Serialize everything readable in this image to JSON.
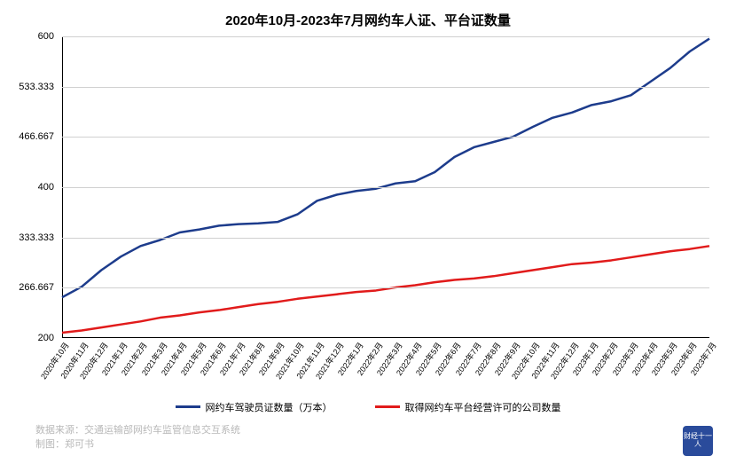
{
  "chart": {
    "type": "line",
    "title": "2020年10月-2023年7月网约车人证、平台证数量",
    "title_fontsize": 15,
    "title_fontweight": "bold",
    "background_color": "#ffffff",
    "grid_color": "#d0d0d0",
    "axis_color": "#000000",
    "ylim": [
      200,
      600
    ],
    "yticks": [
      200,
      266.667,
      333.333,
      400,
      466.667,
      533.333,
      600
    ],
    "ytick_labels": [
      "200",
      "266.667",
      "333.333",
      "400",
      "466.667",
      "533.333",
      "600"
    ],
    "ytick_fontsize": 11,
    "xtick_fontsize": 9,
    "xtick_rotation": -55,
    "categories": [
      "2020年10月",
      "2020年11月",
      "2020年12月",
      "2021年1月",
      "2021年2月",
      "2021年3月",
      "2021年4月",
      "2021年5月",
      "2021年6月",
      "2021年7月",
      "2021年8月",
      "2021年9月",
      "2021年10月",
      "2021年11月",
      "2021年12月",
      "2022年1月",
      "2022年2月",
      "2022年3月",
      "2022年4月",
      "2022年5月",
      "2022年6月",
      "2022年7月",
      "2022年8月",
      "2022年9月",
      "2022年10月",
      "2022年11月",
      "2022年12月",
      "2023年1月",
      "2023年2月",
      "2023年3月",
      "2023年4月",
      "2023年5月",
      "2023年6月",
      "2023年7月"
    ],
    "series": [
      {
        "name": "网约车驾驶员证数量（万本）",
        "color": "#1d3c8c",
        "line_width": 2.5,
        "values": [
          254,
          268,
          290,
          308,
          322,
          330,
          340,
          344,
          349,
          351,
          352,
          354,
          364,
          382,
          390,
          395,
          398,
          405,
          408,
          420,
          440,
          453,
          460,
          467,
          480,
          492,
          499,
          509,
          514,
          522,
          540,
          558,
          580,
          597
        ]
      },
      {
        "name": "取得网约车平台经营许可的公司数量",
        "color": "#e11b1b",
        "line_width": 2.5,
        "values": [
          207,
          210,
          214,
          218,
          222,
          227,
          230,
          234,
          237,
          241,
          245,
          248,
          252,
          255,
          258,
          261,
          263,
          267,
          270,
          274,
          277,
          279,
          282,
          286,
          290,
          294,
          298,
          300,
          303,
          307,
          311,
          315,
          318,
          322
        ]
      }
    ],
    "legend": {
      "fontsize": 11,
      "position": "bottom"
    },
    "footer": {
      "source_label": "数据来源：交通运输部网约车监管信息交互系统",
      "author_label": "制图：郑可书",
      "fontsize": 11,
      "color": "#b8b8b8"
    },
    "logo_text": "财经十一人"
  }
}
